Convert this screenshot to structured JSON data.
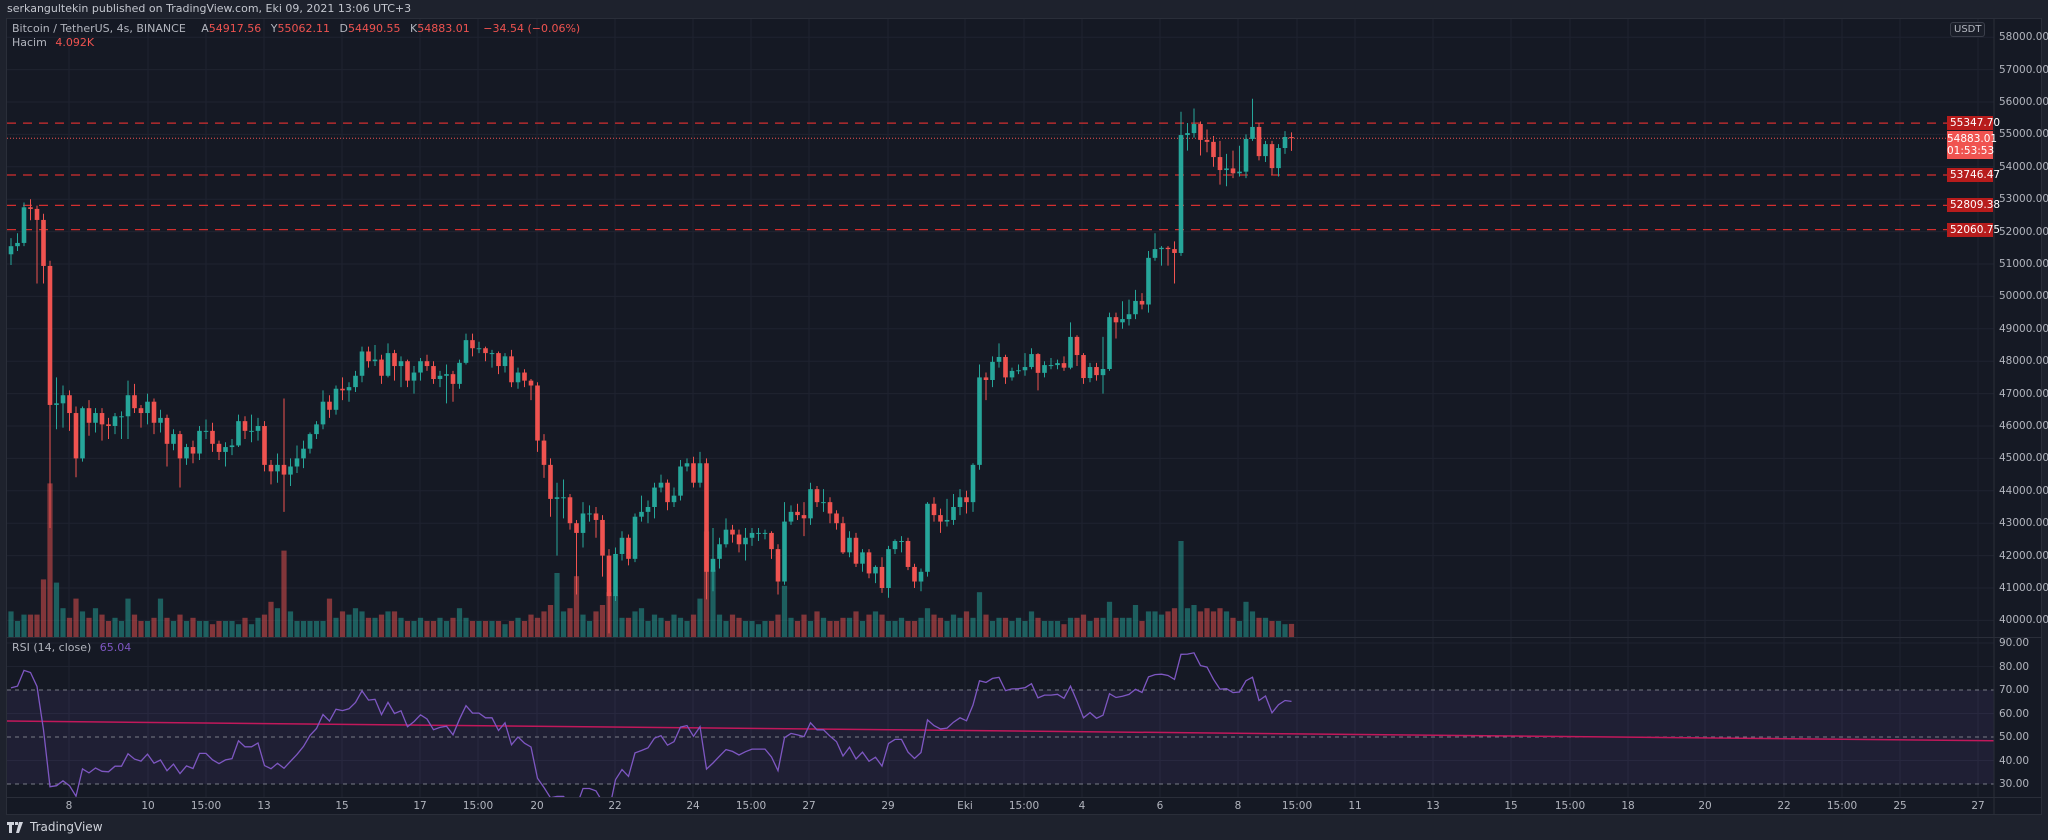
{
  "author_line": "serkangultekin published on TradingView.com, Eki 09, 2021 13:06 UTC+3",
  "legend": {
    "symbol": "Bitcoin / TetherUS, 4s, BINANCE",
    "o_label": "A",
    "o": "54917.56",
    "h_label": "Y",
    "h": "55062.11",
    "l_label": "D",
    "l": "54490.55",
    "c_label": "K",
    "c": "54883.01",
    "change": "−34.54 (−0.06%)"
  },
  "volume_legend": {
    "label": "Hacim",
    "value": "4.092K"
  },
  "rsi_legend": {
    "label": "RSI (14, close)",
    "value": "65.04"
  },
  "price_axis": {
    "currency": "USDT",
    "labels": [
      "58000.00",
      "57000.00",
      "56000.00",
      "55000.00",
      "54000.00",
      "53000.00",
      "52000.00",
      "51000.00",
      "50000.00",
      "49000.00",
      "48000.00",
      "47000.00",
      "46000.00",
      "45000.00",
      "44000.00",
      "43000.00",
      "42000.00",
      "41000.00",
      "40000.00"
    ],
    "values": [
      58000,
      57000,
      56000,
      55000,
      54000,
      53000,
      52000,
      51000,
      50000,
      49000,
      48000,
      47000,
      46000,
      45000,
      44000,
      43000,
      42000,
      41000,
      40000
    ]
  },
  "rsi_axis": {
    "labels": [
      "90.00",
      "80.00",
      "70.00",
      "60.00",
      "50.00",
      "40.00",
      "30.00"
    ],
    "values": [
      90,
      80,
      70,
      60,
      50,
      40,
      30
    ],
    "upper_band": 70,
    "middle": 50,
    "lower_band": 30
  },
  "levels": [
    {
      "value": 55347.7,
      "label": "55347.70"
    },
    {
      "value": 53746.47,
      "label": "53746.47"
    },
    {
      "value": 52809.38,
      "label": "52809.38"
    },
    {
      "value": 52060.75,
      "label": "52060.75"
    }
  ],
  "current_price": {
    "value": 54883.01,
    "label": "54883.01",
    "countdown": "01:53:53"
  },
  "time_axis": [
    "8",
    "10",
    "15:00",
    "13",
    "15",
    "17",
    "15:00",
    "20",
    "22",
    "24",
    "15:00",
    "27",
    "29",
    "Eki",
    "15:00",
    "4",
    "6",
    "8",
    "15:00",
    "11",
    "13",
    "15",
    "15:00",
    "18",
    "20",
    "22",
    "15:00",
    "25",
    "27"
  ],
  "rsi_trendline": {
    "start": 56.8,
    "end": 48.4
  },
  "footer": {
    "brand": "TradingView"
  },
  "colors": {
    "up": "#26a69a",
    "down": "#ef5350",
    "level": "#d32f2f",
    "rsi": "#7e57c2",
    "trendline": "#c2185b"
  },
  "chart_data": {
    "type": "candlestick",
    "interval": "4h",
    "candles": [
      [
        51300,
        51800,
        50970,
        51550
      ],
      [
        51550,
        51950,
        51400,
        51650
      ],
      [
        51650,
        52900,
        51550,
        52750
      ],
      [
        52750,
        53000,
        52350,
        52700
      ],
      [
        52700,
        52800,
        50400,
        52360
      ],
      [
        52360,
        52550,
        50400,
        50940
      ],
      [
        50940,
        51100,
        42850,
        46650
      ],
      [
        46650,
        47500,
        45900,
        46700
      ],
      [
        46700,
        47250,
        45950,
        46950
      ],
      [
        46950,
        47100,
        45850,
        46400
      ],
      [
        46400,
        46600,
        44420,
        45000
      ],
      [
        45000,
        46600,
        44900,
        46550
      ],
      [
        46550,
        46800,
        45700,
        46100
      ],
      [
        46100,
        46550,
        45800,
        46400
      ],
      [
        46400,
        46550,
        45550,
        46050
      ],
      [
        46050,
        46250,
        45600,
        46000
      ],
      [
        46000,
        46400,
        45750,
        46300
      ],
      [
        46300,
        46450,
        45600,
        46300
      ],
      [
        46300,
        47400,
        45600,
        46950
      ],
      [
        46950,
        47300,
        46400,
        46550
      ],
      [
        46550,
        46650,
        45950,
        46400
      ],
      [
        46400,
        47000,
        46050,
        46750
      ],
      [
        46750,
        46850,
        45750,
        46100
      ],
      [
        46100,
        46500,
        45800,
        46250
      ],
      [
        46250,
        46350,
        44750,
        45450
      ],
      [
        45450,
        45900,
        45250,
        45750
      ],
      [
        45750,
        45850,
        44100,
        45000
      ],
      [
        45000,
        45450,
        44800,
        45350
      ],
      [
        45350,
        45550,
        44850,
        45150
      ],
      [
        45150,
        46000,
        44950,
        45850
      ],
      [
        45850,
        46200,
        45600,
        45850
      ],
      [
        45850,
        46100,
        45200,
        45450
      ],
      [
        45450,
        45550,
        44950,
        45200
      ],
      [
        45200,
        45500,
        44750,
        45350
      ],
      [
        45350,
        45600,
        45100,
        45400
      ],
      [
        45400,
        46350,
        45350,
        46150
      ],
      [
        46150,
        46300,
        45600,
        45850
      ],
      [
        45850,
        46350,
        45500,
        45850
      ],
      [
        45850,
        46250,
        45550,
        46000
      ],
      [
        46000,
        46150,
        44600,
        44800
      ],
      [
        44800,
        44950,
        44200,
        44600
      ],
      [
        44600,
        45150,
        44250,
        44800
      ],
      [
        44800,
        46850,
        43350,
        44500
      ],
      [
        44500,
        45000,
        44150,
        44750
      ],
      [
        44750,
        45400,
        44550,
        45000
      ],
      [
        45000,
        45550,
        44700,
        45300
      ],
      [
        45300,
        45800,
        45150,
        45750
      ],
      [
        45750,
        46150,
        45600,
        46050
      ],
      [
        46050,
        47100,
        45900,
        46750
      ],
      [
        46750,
        46950,
        46250,
        46500
      ],
      [
        46500,
        47250,
        46350,
        47150
      ],
      [
        47150,
        47500,
        46800,
        47100
      ],
      [
        47100,
        47350,
        46750,
        47200
      ],
      [
        47200,
        47700,
        47050,
        47550
      ],
      [
        47550,
        48450,
        47350,
        48300
      ],
      [
        48300,
        48450,
        47800,
        48000
      ],
      [
        48000,
        48500,
        47850,
        48050
      ],
      [
        48050,
        48200,
        47300,
        47550
      ],
      [
        47550,
        48550,
        47500,
        48250
      ],
      [
        48250,
        48350,
        47400,
        47850
      ],
      [
        47850,
        48150,
        47200,
        48000
      ],
      [
        48000,
        48050,
        47200,
        47400
      ],
      [
        47400,
        47850,
        47000,
        47650
      ],
      [
        47650,
        48100,
        47400,
        48000
      ],
      [
        48000,
        48200,
        47700,
        47850
      ],
      [
        47850,
        48000,
        47300,
        47450
      ],
      [
        47450,
        47700,
        47200,
        47550
      ],
      [
        47550,
        47900,
        46700,
        47600
      ],
      [
        47600,
        47700,
        46750,
        47300
      ],
      [
        47300,
        48050,
        47150,
        47950
      ],
      [
        47950,
        48850,
        47900,
        48650
      ],
      [
        48650,
        48850,
        48150,
        48400
      ],
      [
        48400,
        48600,
        48250,
        48400
      ],
      [
        48400,
        48450,
        48000,
        48250
      ],
      [
        48250,
        48350,
        47800,
        48250
      ],
      [
        48250,
        48300,
        47600,
        47850
      ],
      [
        47850,
        48250,
        47650,
        48150
      ],
      [
        48150,
        48350,
        47200,
        47350
      ],
      [
        47350,
        47800,
        47150,
        47650
      ],
      [
        47650,
        47750,
        47200,
        47400
      ],
      [
        47400,
        47450,
        46800,
        47250
      ],
      [
        47250,
        47350,
        45200,
        45550
      ],
      [
        45550,
        45750,
        44400,
        44800
      ],
      [
        44800,
        45000,
        43200,
        43750
      ],
      [
        43750,
        44250,
        42000,
        43800
      ],
      [
        43800,
        44350,
        43150,
        43800
      ],
      [
        43800,
        43900,
        42800,
        43000
      ],
      [
        43000,
        43100,
        40800,
        42700
      ],
      [
        42700,
        43650,
        42250,
        43300
      ],
      [
        43300,
        43550,
        43050,
        43300
      ],
      [
        43300,
        43500,
        42550,
        43100
      ],
      [
        43100,
        43250,
        41350,
        42000
      ],
      [
        42000,
        42200,
        39600,
        40750
      ],
      [
        40750,
        42250,
        40600,
        42050
      ],
      [
        42050,
        42750,
        41850,
        42550
      ],
      [
        42550,
        42650,
        41700,
        41900
      ],
      [
        41900,
        43300,
        41800,
        43200
      ],
      [
        43200,
        43850,
        43050,
        43350
      ],
      [
        43350,
        43700,
        43000,
        43500
      ],
      [
        43500,
        44250,
        43150,
        44100
      ],
      [
        44100,
        44500,
        43950,
        44250
      ],
      [
        44250,
        44350,
        43400,
        43650
      ],
      [
        43650,
        44100,
        43500,
        43850
      ],
      [
        43850,
        44950,
        43700,
        44750
      ],
      [
        44750,
        45000,
        44600,
        44850
      ],
      [
        44850,
        45050,
        44100,
        44250
      ],
      [
        44250,
        45200,
        44100,
        44850
      ],
      [
        44850,
        45000,
        40650,
        41500
      ],
      [
        41500,
        42850,
        40900,
        41900
      ],
      [
        41900,
        42550,
        41600,
        42350
      ],
      [
        42350,
        43150,
        42250,
        42800
      ],
      [
        42800,
        42950,
        42400,
        42650
      ],
      [
        42650,
        42800,
        42100,
        42350
      ],
      [
        42350,
        42850,
        41850,
        42550
      ],
      [
        42550,
        42850,
        42300,
        42700
      ],
      [
        42700,
        42850,
        42450,
        42700
      ],
      [
        42700,
        42800,
        42500,
        42700
      ],
      [
        42700,
        42750,
        41900,
        42200
      ],
      [
        42200,
        42350,
        40800,
        41200
      ],
      [
        41200,
        43650,
        41100,
        43050
      ],
      [
        43050,
        43550,
        42950,
        43350
      ],
      [
        43350,
        43600,
        43100,
        43250
      ],
      [
        43250,
        43650,
        42600,
        43150
      ],
      [
        43150,
        44250,
        42950,
        44050
      ],
      [
        44050,
        44150,
        43500,
        43650
      ],
      [
        43650,
        44050,
        43350,
        43650
      ],
      [
        43650,
        43800,
        43000,
        43300
      ],
      [
        43300,
        43400,
        42800,
        43000
      ],
      [
        43000,
        43200,
        42050,
        42100
      ],
      [
        42100,
        42750,
        41950,
        42550
      ],
      [
        42550,
        42700,
        41650,
        41750
      ],
      [
        41750,
        42200,
        41500,
        42100
      ],
      [
        42100,
        42200,
        41300,
        41450
      ],
      [
        41450,
        41700,
        41150,
        41650
      ],
      [
        41650,
        41950,
        40850,
        41000
      ],
      [
        41000,
        42300,
        40700,
        42200
      ],
      [
        42200,
        42500,
        42050,
        42450
      ],
      [
        42450,
        42600,
        42100,
        42450
      ],
      [
        42450,
        42550,
        41550,
        41650
      ],
      [
        41650,
        41750,
        41000,
        41200
      ],
      [
        41200,
        41600,
        40900,
        41500
      ],
      [
        41500,
        43650,
        41350,
        43600
      ],
      [
        43600,
        43800,
        43050,
        43250
      ],
      [
        43250,
        43450,
        42700,
        43050
      ],
      [
        43050,
        43750,
        42900,
        43100
      ],
      [
        43100,
        43900,
        42950,
        43500
      ],
      [
        43500,
        44050,
        43250,
        43800
      ],
      [
        43800,
        44000,
        43300,
        43650
      ],
      [
        43650,
        44850,
        43350,
        44800
      ],
      [
        44800,
        47900,
        44650,
        47500
      ],
      [
        47500,
        47650,
        46800,
        47420
      ],
      [
        47420,
        48150,
        47200,
        47980
      ],
      [
        47980,
        48550,
        47800,
        48130
      ],
      [
        48130,
        48200,
        47300,
        47500
      ],
      [
        47500,
        47800,
        47400,
        47700
      ],
      [
        47700,
        47900,
        47600,
        47720
      ],
      [
        47720,
        48250,
        47550,
        47820
      ],
      [
        47820,
        48400,
        47750,
        48220
      ],
      [
        48220,
        48250,
        47100,
        47640
      ],
      [
        47640,
        48000,
        47500,
        47880
      ],
      [
        47880,
        48100,
        47750,
        47880
      ],
      [
        47880,
        48050,
        47750,
        47940
      ],
      [
        47940,
        48150,
        47700,
        47800
      ],
      [
        47800,
        49200,
        47750,
        48750
      ],
      [
        48750,
        48800,
        47850,
        48190
      ],
      [
        48190,
        48250,
        47300,
        47480
      ],
      [
        47480,
        47950,
        47350,
        47820
      ],
      [
        47820,
        47950,
        47400,
        47570
      ],
      [
        47570,
        48750,
        47000,
        47760
      ],
      [
        47760,
        49500,
        47700,
        49360
      ],
      [
        49360,
        49500,
        48700,
        49200
      ],
      [
        49200,
        49850,
        49000,
        49300
      ],
      [
        49300,
        49900,
        49100,
        49450
      ],
      [
        49450,
        50200,
        49300,
        49860
      ],
      [
        49860,
        50100,
        49600,
        49750
      ],
      [
        49750,
        51400,
        49500,
        51190
      ],
      [
        51190,
        51950,
        51100,
        51460
      ],
      [
        51460,
        51550,
        50950,
        51500
      ],
      [
        51500,
        51550,
        50950,
        51460
      ],
      [
        51460,
        51700,
        50400,
        51340
      ],
      [
        51340,
        55700,
        51250,
        54980
      ],
      [
        54980,
        55350,
        54500,
        55040
      ],
      [
        55040,
        55800,
        54900,
        55320
      ],
      [
        55320,
        55400,
        54350,
        54830
      ],
      [
        54830,
        55150,
        54450,
        54770
      ],
      [
        54770,
        54950,
        54000,
        54300
      ],
      [
        54300,
        54800,
        53450,
        53900
      ],
      [
        53900,
        54400,
        53400,
        53950
      ],
      [
        53950,
        54500,
        53650,
        53800
      ],
      [
        53800,
        54650,
        53700,
        53850
      ],
      [
        53850,
        55000,
        53650,
        54860
      ],
      [
        54860,
        56100,
        54800,
        55230
      ],
      [
        55230,
        55350,
        54200,
        54330
      ],
      [
        54330,
        54800,
        54150,
        54700
      ],
      [
        54700,
        54800,
        53750,
        53960
      ],
      [
        53960,
        54700,
        53700,
        54580
      ],
      [
        54580,
        55100,
        54400,
        54920
      ],
      [
        54917.56,
        55062.11,
        54490.55,
        54883.01
      ]
    ],
    "volume_k": [
      8,
      5,
      7,
      7,
      7,
      18,
      48,
      17,
      9,
      6,
      12,
      8,
      6,
      9,
      7,
      5,
      6,
      5,
      12,
      7,
      5,
      5,
      6,
      12,
      6,
      5,
      7,
      5,
      6,
      5,
      5,
      4,
      5,
      5,
      5,
      4,
      6,
      4,
      6,
      7,
      11,
      9,
      27,
      8,
      5,
      5,
      5,
      5,
      5,
      12,
      6,
      8,
      7,
      9,
      8,
      6,
      6,
      7,
      8,
      8,
      6,
      5,
      5,
      6,
      5,
      5,
      6,
      5,
      6,
      9,
      6,
      5,
      5,
      5,
      5,
      5,
      4,
      5,
      6,
      5,
      7,
      6,
      8,
      10,
      20,
      8,
      9,
      19,
      7,
      5,
      8,
      10,
      14,
      13,
      6,
      6,
      8,
      9,
      5,
      7,
      6,
      5,
      7,
      6,
      5,
      7,
      12,
      33,
      21,
      7,
      5,
      7,
      6,
      5,
      5,
      4,
      5,
      5,
      7,
      16,
      6,
      5,
      7,
      5,
      8,
      6,
      5,
      5,
      6,
      6,
      8,
      5,
      7,
      8,
      7,
      5,
      5,
      6,
      5,
      5,
      6,
      9,
      7,
      6,
      5,
      7,
      6,
      8,
      6,
      14,
      7,
      5,
      6,
      6,
      5,
      6,
      5,
      8,
      6,
      5,
      5,
      5,
      4,
      6,
      6,
      7,
      5,
      6,
      6,
      11,
      6,
      6,
      6,
      10,
      5,
      8,
      8,
      7,
      8,
      9,
      30,
      9,
      10,
      8,
      9,
      8,
      9,
      8,
      6,
      5,
      11,
      8,
      6,
      6,
      5,
      5,
      4,
      4.092
    ],
    "ylim": [
      40000,
      58000
    ],
    "rsi_ylim": [
      30,
      90
    ]
  }
}
